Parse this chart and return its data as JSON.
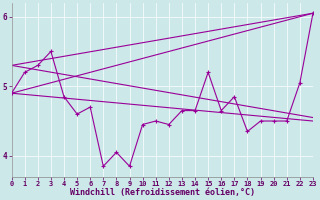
{
  "x": [
    0,
    1,
    2,
    3,
    4,
    5,
    6,
    7,
    8,
    9,
    10,
    11,
    12,
    13,
    14,
    15,
    16,
    17,
    18,
    19,
    20,
    21,
    22,
    23
  ],
  "line_data": [
    4.9,
    5.2,
    5.3,
    5.5,
    4.85,
    4.6,
    4.7,
    3.85,
    4.05,
    3.85,
    4.45,
    4.5,
    4.45,
    4.65,
    4.65,
    5.2,
    4.65,
    4.85,
    4.35,
    4.5,
    4.5,
    4.5,
    5.05,
    6.05
  ],
  "upper_line": [
    [
      0,
      4.9
    ],
    [
      23,
      6.05
    ]
  ],
  "upper_line2": [
    [
      0,
      5.3
    ],
    [
      23,
      6.05
    ]
  ],
  "lower_line1": [
    [
      0,
      4.9
    ],
    [
      23,
      4.5
    ]
  ],
  "lower_line2": [
    [
      0,
      5.3
    ],
    [
      23,
      4.55
    ]
  ],
  "color": "#990099",
  "bg_color": "#cce8e8",
  "plot_bg": "#cce8e8",
  "xlim": [
    0,
    23
  ],
  "ylim": [
    3.7,
    6.2
  ],
  "xlabel": "Windchill (Refroidissement éolien,°C)",
  "yticks": [
    4,
    5,
    6
  ],
  "xticks": [
    0,
    1,
    2,
    3,
    4,
    5,
    6,
    7,
    8,
    9,
    10,
    11,
    12,
    13,
    14,
    15,
    16,
    17,
    18,
    19,
    20,
    21,
    22,
    23
  ],
  "xlabel_fontsize": 6,
  "tick_fontsize": 5,
  "linewidth": 0.8,
  "marker_size": 3
}
